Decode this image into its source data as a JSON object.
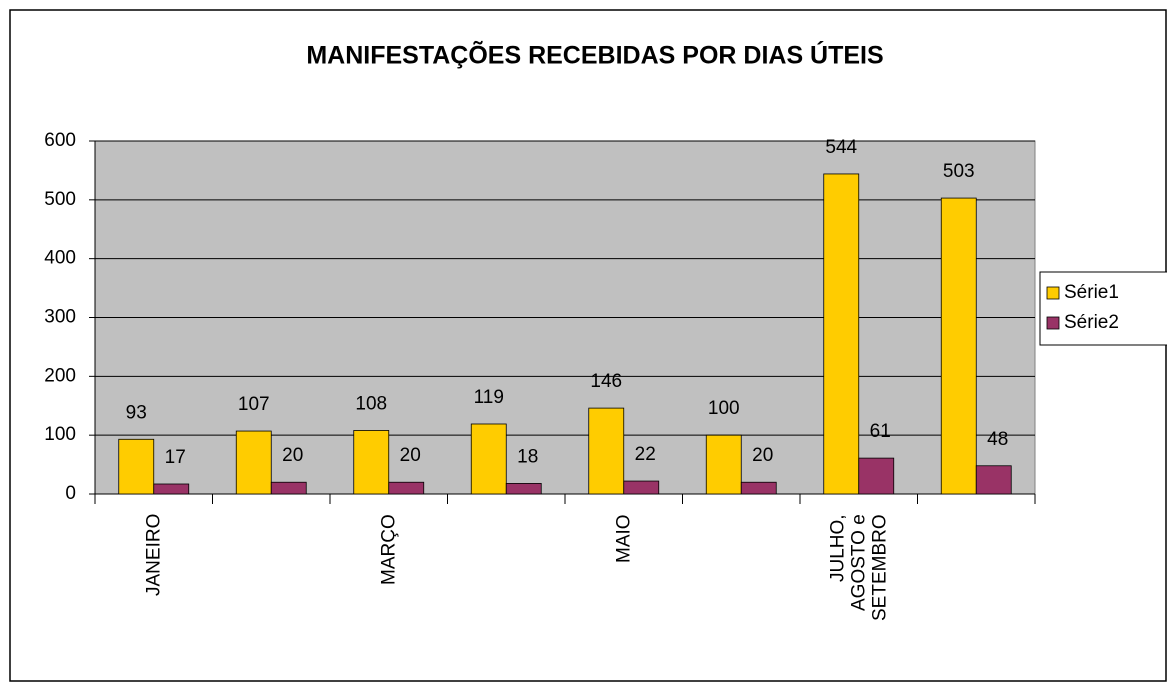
{
  "chart_data": {
    "type": "bar",
    "title": "MANIFESTAÇÕES RECEBIDAS POR DIAS ÚTEIS",
    "categories": [
      "JANEIRO",
      null,
      "MARÇO",
      null,
      "MAIO",
      null,
      "JULHO,\nAGOSTO e\nSETEMBRO",
      null
    ],
    "series": [
      {
        "name": "Série1",
        "color": "#ffcc00",
        "values": [
          93,
          107,
          108,
          119,
          146,
          100,
          544,
          503
        ]
      },
      {
        "name": "Série2",
        "color": "#993366",
        "values": [
          17,
          20,
          20,
          18,
          22,
          20,
          61,
          48
        ]
      }
    ],
    "ylim": [
      0,
      600
    ],
    "yticks": [
      0,
      100,
      200,
      300,
      400,
      500,
      600
    ],
    "grid": true,
    "legend": "right"
  }
}
